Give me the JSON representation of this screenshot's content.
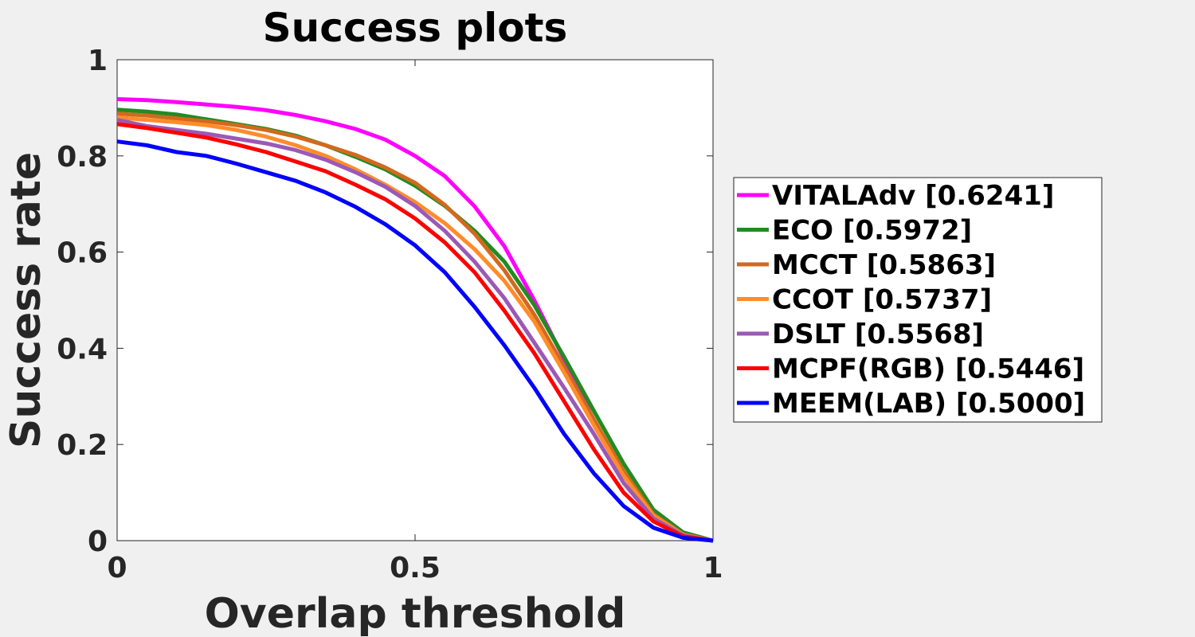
{
  "chart_data": {
    "type": "line",
    "title": "Success plots",
    "xlabel": "Overlap threshold",
    "ylabel": "Success rate",
    "xlim": [
      0,
      1
    ],
    "ylim": [
      0,
      1
    ],
    "xticks": [
      "0",
      "0.5",
      "1"
    ],
    "yticks": [
      "0",
      "0.2",
      "0.4",
      "0.6",
      "0.8",
      "1"
    ],
    "grid": false,
    "legend_position": "outside-right",
    "x": [
      0,
      0.05,
      0.1,
      0.15,
      0.2,
      0.25,
      0.3,
      0.35,
      0.4,
      0.45,
      0.5,
      0.55,
      0.6,
      0.65,
      0.7,
      0.75,
      0.8,
      0.85,
      0.9,
      0.95,
      1.0
    ],
    "series": [
      {
        "name": "VITALAdv [0.6241]",
        "color": "#ff00ff",
        "values": [
          0.918,
          0.916,
          0.912,
          0.907,
          0.902,
          0.895,
          0.885,
          0.872,
          0.856,
          0.834,
          0.8,
          0.758,
          0.695,
          0.612,
          0.5,
          0.378,
          0.25,
          0.14,
          0.052,
          0.012,
          0.0
        ]
      },
      {
        "name": "ECO [0.5972]",
        "color": "#228b22",
        "values": [
          0.896,
          0.892,
          0.886,
          0.876,
          0.866,
          0.856,
          0.842,
          0.822,
          0.798,
          0.772,
          0.738,
          0.696,
          0.644,
          0.58,
          0.49,
          0.382,
          0.27,
          0.16,
          0.064,
          0.017,
          0.0
        ]
      },
      {
        "name": "MCCT [0.5863]",
        "color": "#d2691e",
        "values": [
          0.888,
          0.884,
          0.878,
          0.872,
          0.864,
          0.854,
          0.84,
          0.822,
          0.802,
          0.776,
          0.744,
          0.698,
          0.638,
          0.562,
          0.47,
          0.362,
          0.252,
          0.144,
          0.055,
          0.013,
          0.0
        ]
      },
      {
        "name": "CCOT [0.5737]",
        "color": "#ff8c2a",
        "values": [
          0.88,
          0.875,
          0.87,
          0.864,
          0.854,
          0.84,
          0.822,
          0.8,
          0.772,
          0.74,
          0.704,
          0.66,
          0.606,
          0.54,
          0.456,
          0.35,
          0.24,
          0.135,
          0.052,
          0.012,
          0.0
        ]
      },
      {
        "name": "DSLT [0.5568]",
        "color": "#9b59b6",
        "values": [
          0.875,
          0.862,
          0.854,
          0.846,
          0.836,
          0.826,
          0.812,
          0.792,
          0.766,
          0.736,
          0.696,
          0.644,
          0.58,
          0.504,
          0.412,
          0.318,
          0.222,
          0.12,
          0.046,
          0.011,
          0.0
        ]
      },
      {
        "name": "MCPF(RGB) [0.5446]",
        "color": "#ff0000",
        "values": [
          0.866,
          0.858,
          0.848,
          0.838,
          0.824,
          0.808,
          0.788,
          0.768,
          0.74,
          0.71,
          0.67,
          0.62,
          0.558,
          0.478,
          0.39,
          0.29,
          0.19,
          0.1,
          0.04,
          0.009,
          0.0
        ]
      },
      {
        "name": "MEEM(LAB) [0.5000]",
        "color": "#0000ff",
        "values": [
          0.83,
          0.822,
          0.808,
          0.8,
          0.784,
          0.766,
          0.748,
          0.724,
          0.694,
          0.658,
          0.614,
          0.558,
          0.486,
          0.406,
          0.318,
          0.222,
          0.14,
          0.072,
          0.027,
          0.006,
          0.0
        ]
      }
    ]
  }
}
